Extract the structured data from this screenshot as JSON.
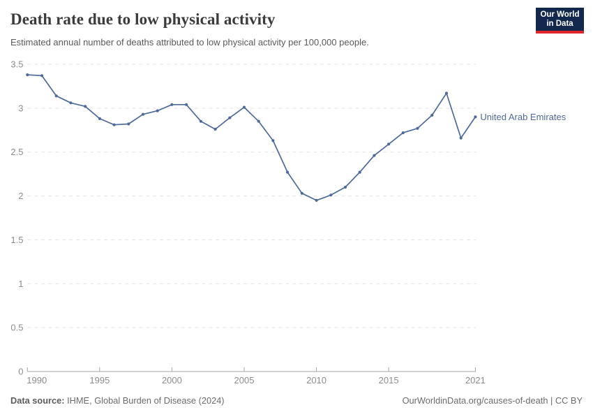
{
  "header": {
    "title": "Death rate due to low physical activity",
    "subtitle": "Estimated annual number of deaths attributed to low physical activity per 100,000 people.",
    "logo": {
      "line1": "Our World",
      "line2": "in Data",
      "bg_color": "#12294d",
      "accent_color": "#e0262c"
    }
  },
  "chart_data": {
    "type": "line",
    "title": "Death rate due to low physical activity",
    "xlabel": "",
    "ylabel": "",
    "x": [
      1990,
      1991,
      1992,
      1993,
      1994,
      1995,
      1996,
      1997,
      1998,
      1999,
      2000,
      2001,
      2002,
      2003,
      2004,
      2005,
      2006,
      2007,
      2008,
      2009,
      2010,
      2011,
      2012,
      2013,
      2014,
      2015,
      2016,
      2017,
      2018,
      2019,
      2020,
      2021
    ],
    "series": [
      {
        "name": "United Arab Emirates",
        "color": "#4C6A9C",
        "values": [
          3.38,
          3.37,
          3.14,
          3.06,
          3.02,
          2.88,
          2.81,
          2.82,
          2.93,
          2.97,
          3.04,
          3.04,
          2.85,
          2.76,
          2.89,
          3.01,
          2.85,
          2.63,
          2.27,
          2.03,
          1.95,
          2.01,
          2.1,
          2.27,
          2.46,
          2.59,
          2.72,
          2.77,
          2.92,
          3.17,
          2.66,
          2.9
        ]
      }
    ],
    "ylim": [
      0,
      3.5
    ],
    "yticks": [
      0,
      0.5,
      1,
      1.5,
      2,
      2.5,
      3,
      3.5
    ],
    "xticks": [
      1990,
      1995,
      2000,
      2005,
      2010,
      2015,
      2021
    ],
    "grid": "horizontal-dashed",
    "legend_position": "entity-label-right-of-line",
    "colors": {
      "line": "#4C6A9C",
      "grid": "#e2e2e2",
      "axis": "#a6a6a6",
      "tick_label": "#8c8c8c"
    }
  },
  "footer": {
    "source_label": "Data source:",
    "source_text": "IHME, Global Burden of Disease (2024)",
    "credit": "OurWorldinData.org/causes-of-death | CC BY"
  }
}
